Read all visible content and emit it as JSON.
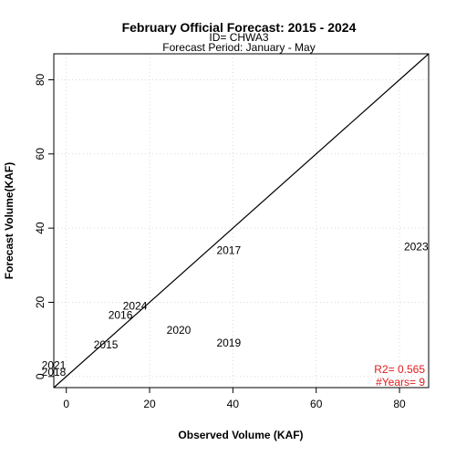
{
  "chart_data": {
    "type": "scatter",
    "title": "February Official Forecast: 2015 - 2024",
    "subtitle_lines": [
      "ID= CHWA3",
      "Forecast Period:  January - May"
    ],
    "xlabel": "Observed Volume (KAF)",
    "ylabel": "Forecast Volume(KAF)",
    "xlim": [
      -3,
      87
    ],
    "ylim": [
      -3,
      87
    ],
    "x_ticks": [
      0,
      20,
      40,
      60,
      80
    ],
    "y_ticks": [
      0,
      20,
      40,
      60,
      80
    ],
    "grid": true,
    "reference_line": "1:1",
    "points": [
      {
        "label": "2015",
        "x": 9.5,
        "y": 8.5
      },
      {
        "label": "2016",
        "x": 13,
        "y": 16.5
      },
      {
        "label": "2017",
        "x": 39,
        "y": 34
      },
      {
        "label": "2018",
        "x": -3,
        "y": 1.2
      },
      {
        "label": "2019",
        "x": 39,
        "y": 9
      },
      {
        "label": "2020",
        "x": 27,
        "y": 12.5
      },
      {
        "label": "2021",
        "x": -3,
        "y": 3
      },
      {
        "label": "2023",
        "x": 84,
        "y": 35
      },
      {
        "label": "2024",
        "x": 16.5,
        "y": 19
      }
    ],
    "stats": {
      "r2_text": "R2=  0.565",
      "years_text": "#Years=  9"
    },
    "stats_color": "#e31a1c"
  }
}
